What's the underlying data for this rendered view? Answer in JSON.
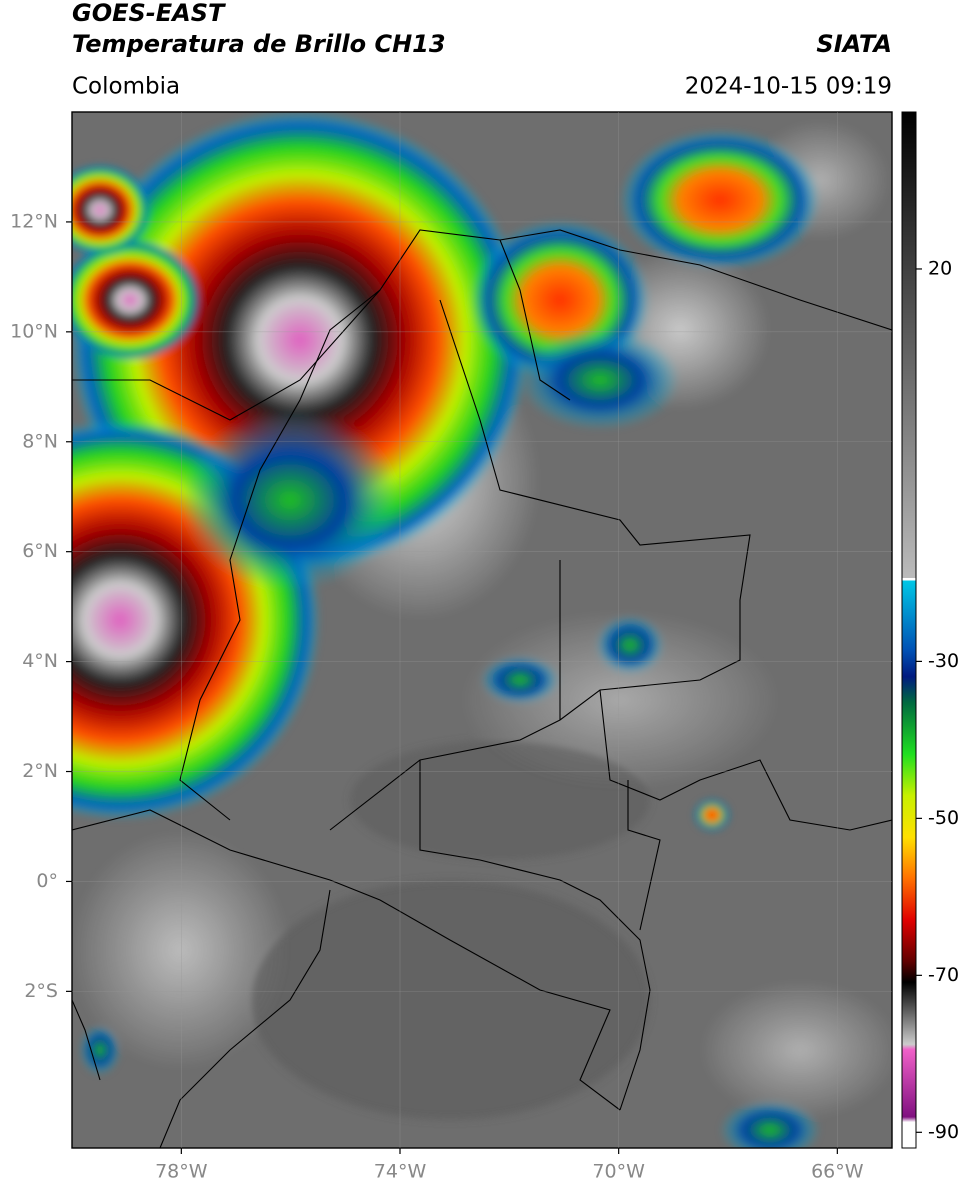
{
  "header": {
    "satellite": "GOES-EAST",
    "product": "Temperatura de Brillo CH13",
    "source": "SIATA",
    "region": "Colombia",
    "datetime": "2024-10-15 09:19"
  },
  "map": {
    "xlim": [
      -80,
      -65
    ],
    "ylim": [
      -4.85,
      14
    ],
    "xticks": [
      {
        "value": -78,
        "label": "78°W"
      },
      {
        "value": -74,
        "label": "74°W"
      },
      {
        "value": -70,
        "label": "70°W"
      },
      {
        "value": -66,
        "label": "66°W"
      }
    ],
    "yticks": [
      {
        "value": 12,
        "label": "12°N"
      },
      {
        "value": 10,
        "label": "10°N"
      },
      {
        "value": 8,
        "label": "8°N"
      },
      {
        "value": 6,
        "label": "6°N"
      },
      {
        "value": 4,
        "label": "4°N"
      },
      {
        "value": 2,
        "label": "2°N"
      },
      {
        "value": 0,
        "label": "0°"
      },
      {
        "value": -2,
        "label": "2°S"
      }
    ]
  },
  "colorbar": {
    "lim": [
      -92,
      40
    ],
    "ticks": [
      20,
      -30,
      -50,
      -70,
      -90
    ]
  }
}
